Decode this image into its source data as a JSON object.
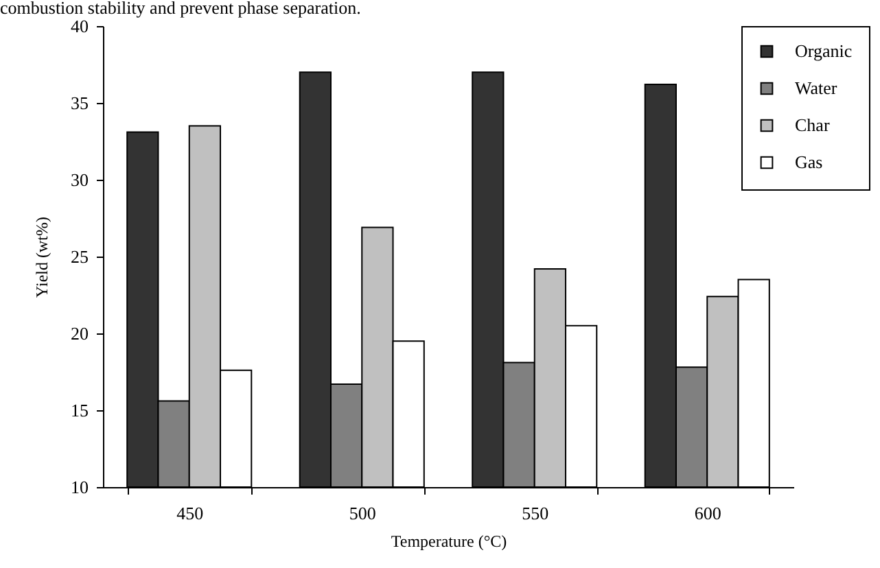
{
  "chart_data": {
    "type": "bar",
    "annotations": [
      "combustion stability and prevent phase separation."
    ],
    "xlabel": "Temperature (°C)",
    "ylabel": "Yield (wt%)",
    "categories": [
      "450",
      "500",
      "550",
      "600"
    ],
    "series": [
      {
        "name": "Organic",
        "color": "#333333",
        "values": [
          33.1,
          37.0,
          37.0,
          36.2
        ]
      },
      {
        "name": "Water",
        "color": "#808080",
        "values": [
          15.6,
          16.7,
          18.1,
          17.8
        ]
      },
      {
        "name": "Char",
        "color": "#c0c0c0",
        "values": [
          33.5,
          26.9,
          24.2,
          22.4
        ]
      },
      {
        "name": "Gas",
        "color": "#ffffff",
        "values": [
          17.6,
          19.5,
          20.5,
          23.5
        ]
      }
    ],
    "ylim": [
      10,
      40
    ],
    "yticks": [
      10,
      15,
      20,
      25,
      30,
      35,
      40
    ],
    "grid": false,
    "legend": "top right"
  }
}
